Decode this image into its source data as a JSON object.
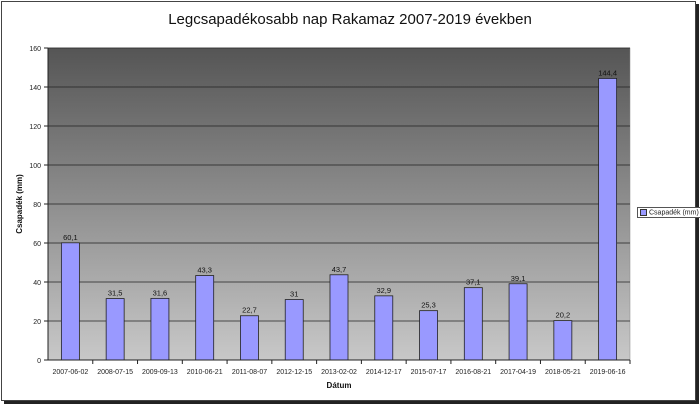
{
  "chart_data": {
    "type": "bar",
    "title": "Legcsapadékosabb nap Rakamaz 2007-2019 években",
    "xlabel": "Dátum",
    "ylabel": "Csapadék (mm)",
    "ylim": [
      0,
      160
    ],
    "yticks": [
      0,
      20,
      40,
      60,
      80,
      100,
      120,
      140,
      160
    ],
    "grid": true,
    "legend_position": "right",
    "categories": [
      "2007-06-02",
      "2008-07-15",
      "2009-09-13",
      "2010-06-21",
      "2011-08-07",
      "2012-12-15",
      "2013-02-02",
      "2014-12-17",
      "2015-07-17",
      "2016-08-21",
      "2017-04-19",
      "2018-05-21",
      "2019-06-16"
    ],
    "series": [
      {
        "name": "Csapadék (mm)",
        "values": [
          60.1,
          31.5,
          31.6,
          43.3,
          22.7,
          31,
          43.7,
          32.9,
          25.3,
          37.1,
          39.1,
          20.2,
          144.4
        ],
        "labels": [
          "60,1",
          "31,5",
          "31,6",
          "43,3",
          "22,7",
          "31",
          "43,7",
          "32,9",
          "25,3",
          "37,1",
          "39,1",
          "20,2",
          "144,4"
        ],
        "color": "#9999ff"
      }
    ],
    "background_gradient": [
      "#555555",
      "#c8c8c8"
    ]
  }
}
